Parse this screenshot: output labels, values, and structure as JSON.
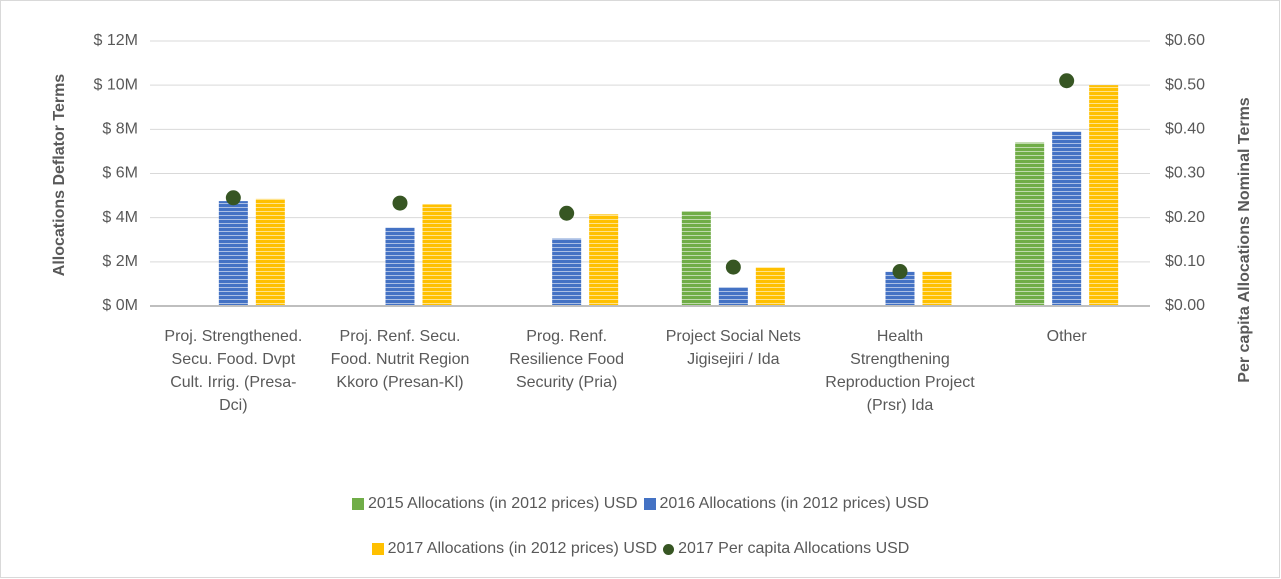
{
  "chart_data": {
    "type": "bar",
    "y_label": "Allocations Deflator Terms",
    "y2_label": "Per capita Allocations Nominal Terms",
    "categories": [
      "Proj. Strengthened. Secu. Food. Dvpt Cult. Irrig. (Presa-Dci)",
      "Proj. Renf. Secu. Food. Nutrit Region Kkoro (Presan-Kl)",
      "Prog. Renf. Resilience Food Security (Pria)",
      "Project Social Nets Jigisejiri / Ida",
      "Health Strengthening Reproduction Project (Prsr) Ida",
      "Other"
    ],
    "series": [
      {
        "name": "2015 Allocations (in 2012 prices) USD",
        "color": "#70ad47",
        "values": [
          null,
          null,
          null,
          4.3,
          null,
          7.4
        ]
      },
      {
        "name": "2016 Allocations (in 2012 prices) USD",
        "color": "#4472c4",
        "values": [
          4.75,
          3.55,
          3.05,
          0.85,
          1.55,
          7.9
        ]
      },
      {
        "name": "2017 Allocations (in 2012 prices) USD",
        "color": "#ffc000",
        "values": [
          4.85,
          4.6,
          4.15,
          1.75,
          1.55,
          10.0
        ]
      },
      {
        "name": "2017 Per capita Allocations USD",
        "color": "#375623",
        "axis": "y2",
        "marker": "circle",
        "values": [
          0.245,
          0.233,
          0.21,
          0.088,
          0.078,
          0.51
        ]
      }
    ],
    "ylim": [
      0,
      12
    ],
    "yticks": [
      {
        "value": 0,
        "label": "$ 0M"
      },
      {
        "value": 2,
        "label": "$ 2M"
      },
      {
        "value": 4,
        "label": "$ 4M"
      },
      {
        "value": 6,
        "label": "$ 6M"
      },
      {
        "value": 8,
        "label": "$ 8M"
      },
      {
        "value": 10,
        "label": "$ 10M"
      },
      {
        "value": 12,
        "label": "$ 12M"
      }
    ],
    "y2lim": [
      0,
      0.6
    ],
    "y2ticks": [
      {
        "value": 0,
        "label": "$0.00"
      },
      {
        "value": 0.1,
        "label": "$0.10"
      },
      {
        "value": 0.2,
        "label": "$0.20"
      },
      {
        "value": 0.3,
        "label": "$0.30"
      },
      {
        "value": 0.4,
        "label": "$0.40"
      },
      {
        "value": 0.5,
        "label": "$0.50"
      },
      {
        "value": 0.6,
        "label": "$0.60"
      }
    ],
    "grid": true,
    "legend": "bottom"
  }
}
